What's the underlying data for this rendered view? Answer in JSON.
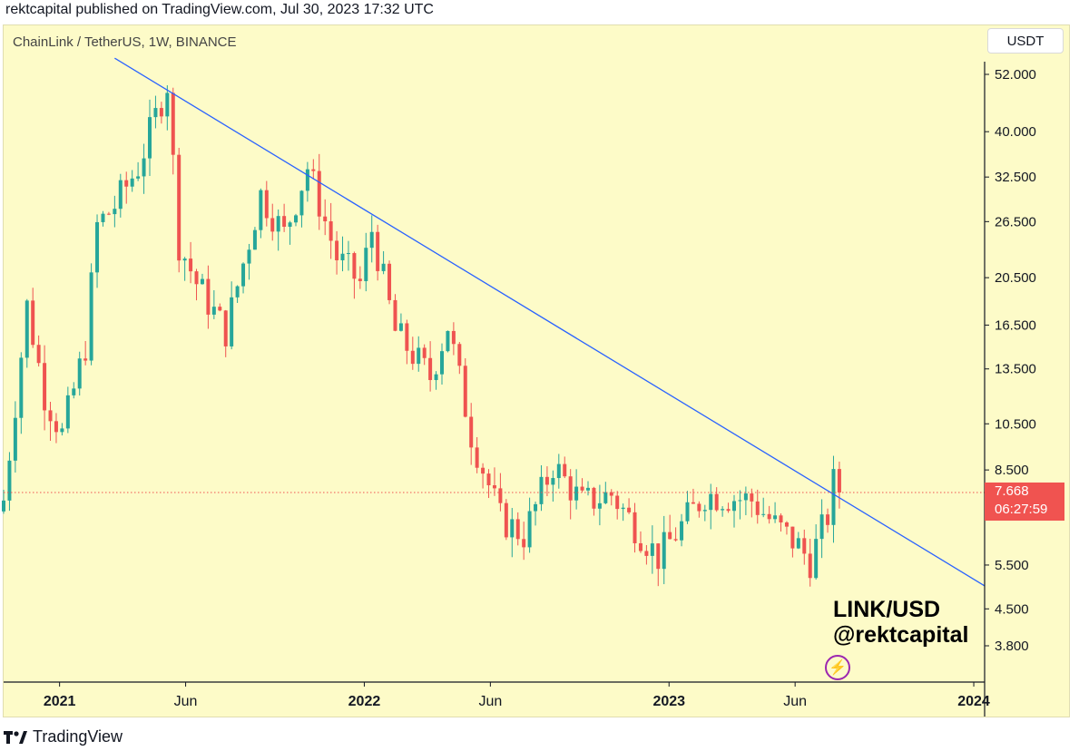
{
  "publish_line": "rektcapital published on TradingView.com, Jul 30, 2023 17:32 UTC",
  "symbol_line": "ChainLink / TetherUS, 1W, BINANCE",
  "currency_button": "USDT",
  "watermark": {
    "line1": "LINK/USD",
    "line2": "@rektcapital"
  },
  "last_price": {
    "value": "7.668",
    "countdown": "06:27:59"
  },
  "brand": "TradingView",
  "colors": {
    "up": "#26a69a",
    "down": "#ef5350",
    "trendline": "#2962ff",
    "background": "#fdfbc8",
    "price_line": "#ef5350",
    "icon": "#9c27b0"
  },
  "icons": {
    "bolt": "bolt-icon",
    "logo": "tradingview-logo-icon"
  },
  "chart_data": {
    "type": "candlestick",
    "title": "ChainLink / TetherUS, 1W, BINANCE",
    "y_scale": "log",
    "y_ticks": [
      52,
      40,
      32.5,
      26.5,
      20.5,
      16.5,
      13.5,
      10.5,
      8.5,
      5.5,
      4.5,
      3.8
    ],
    "y_tick_labels": [
      "52.000",
      "40.000",
      "32.500",
      "26.500",
      "20.500",
      "16.500",
      "13.500",
      "10.500",
      "8.500",
      "5.500",
      "4.500",
      "3.800"
    ],
    "x_ticks": [
      {
        "label": "2021",
        "date": "2021-01-01",
        "bold": true
      },
      {
        "label": "Jun",
        "date": "2021-06-01",
        "bold": false
      },
      {
        "label": "2022",
        "date": "2022-01-01",
        "bold": true
      },
      {
        "label": "Jun",
        "date": "2022-06-01",
        "bold": false
      },
      {
        "label": "2023",
        "date": "2023-01-01",
        "bold": true
      },
      {
        "label": "Jun",
        "date": "2023-06-01",
        "bold": false
      },
      {
        "label": "2024",
        "date": "2024-01-01",
        "bold": true
      }
    ],
    "x_range": [
      "2020-10-26",
      "2024-01-14"
    ],
    "y_range": [
      3.4,
      56
    ],
    "last_close": 7.668,
    "trendline": [
      {
        "date": "2021-03-08",
        "price": 56.0
      },
      {
        "date": "2024-01-14",
        "price": 5.0
      }
    ],
    "anchors": [
      {
        "date": "2020-10-26",
        "price": 7.4
      },
      {
        "date": "2020-11-23",
        "price": 18.0
      },
      {
        "date": "2020-12-14",
        "price": 12.0
      },
      {
        "date": "2021-01-04",
        "price": 10.0
      },
      {
        "date": "2021-02-01",
        "price": 15.0
      },
      {
        "date": "2021-02-15",
        "price": 26.0
      },
      {
        "date": "2021-03-08",
        "price": 28.5
      },
      {
        "date": "2021-04-05",
        "price": 34.0
      },
      {
        "date": "2021-05-10",
        "price": 50.0
      },
      {
        "date": "2021-05-24",
        "price": 24.0
      },
      {
        "date": "2021-06-14",
        "price": 20.0
      },
      {
        "date": "2021-07-19",
        "price": 16.0
      },
      {
        "date": "2021-08-30",
        "price": 30.0
      },
      {
        "date": "2021-09-27",
        "price": 25.0
      },
      {
        "date": "2021-10-25",
        "price": 34.0
      },
      {
        "date": "2021-11-29",
        "price": 22.5
      },
      {
        "date": "2021-12-27",
        "price": 20.0
      },
      {
        "date": "2022-01-10",
        "price": 25.5
      },
      {
        "date": "2022-02-07",
        "price": 16.0
      },
      {
        "date": "2022-03-21",
        "price": 13.0
      },
      {
        "date": "2022-04-11",
        "price": 16.5
      },
      {
        "date": "2022-05-09",
        "price": 10.0
      },
      {
        "date": "2022-06-13",
        "price": 6.8
      },
      {
        "date": "2022-07-11",
        "price": 6.3
      },
      {
        "date": "2022-08-15",
        "price": 8.7
      },
      {
        "date": "2022-09-19",
        "price": 7.3
      },
      {
        "date": "2022-10-24",
        "price": 7.6
      },
      {
        "date": "2022-12-19",
        "price": 5.7
      },
      {
        "date": "2023-02-13",
        "price": 7.6
      },
      {
        "date": "2023-04-10",
        "price": 7.4
      },
      {
        "date": "2023-05-08",
        "price": 6.6
      },
      {
        "date": "2023-06-05",
        "price": 6.0
      },
      {
        "date": "2023-06-19",
        "price": 5.6
      },
      {
        "date": "2023-07-10",
        "price": 6.9
      },
      {
        "date": "2023-07-17",
        "price": 8.0
      },
      {
        "date": "2023-07-24",
        "price": 7.668
      }
    ]
  }
}
